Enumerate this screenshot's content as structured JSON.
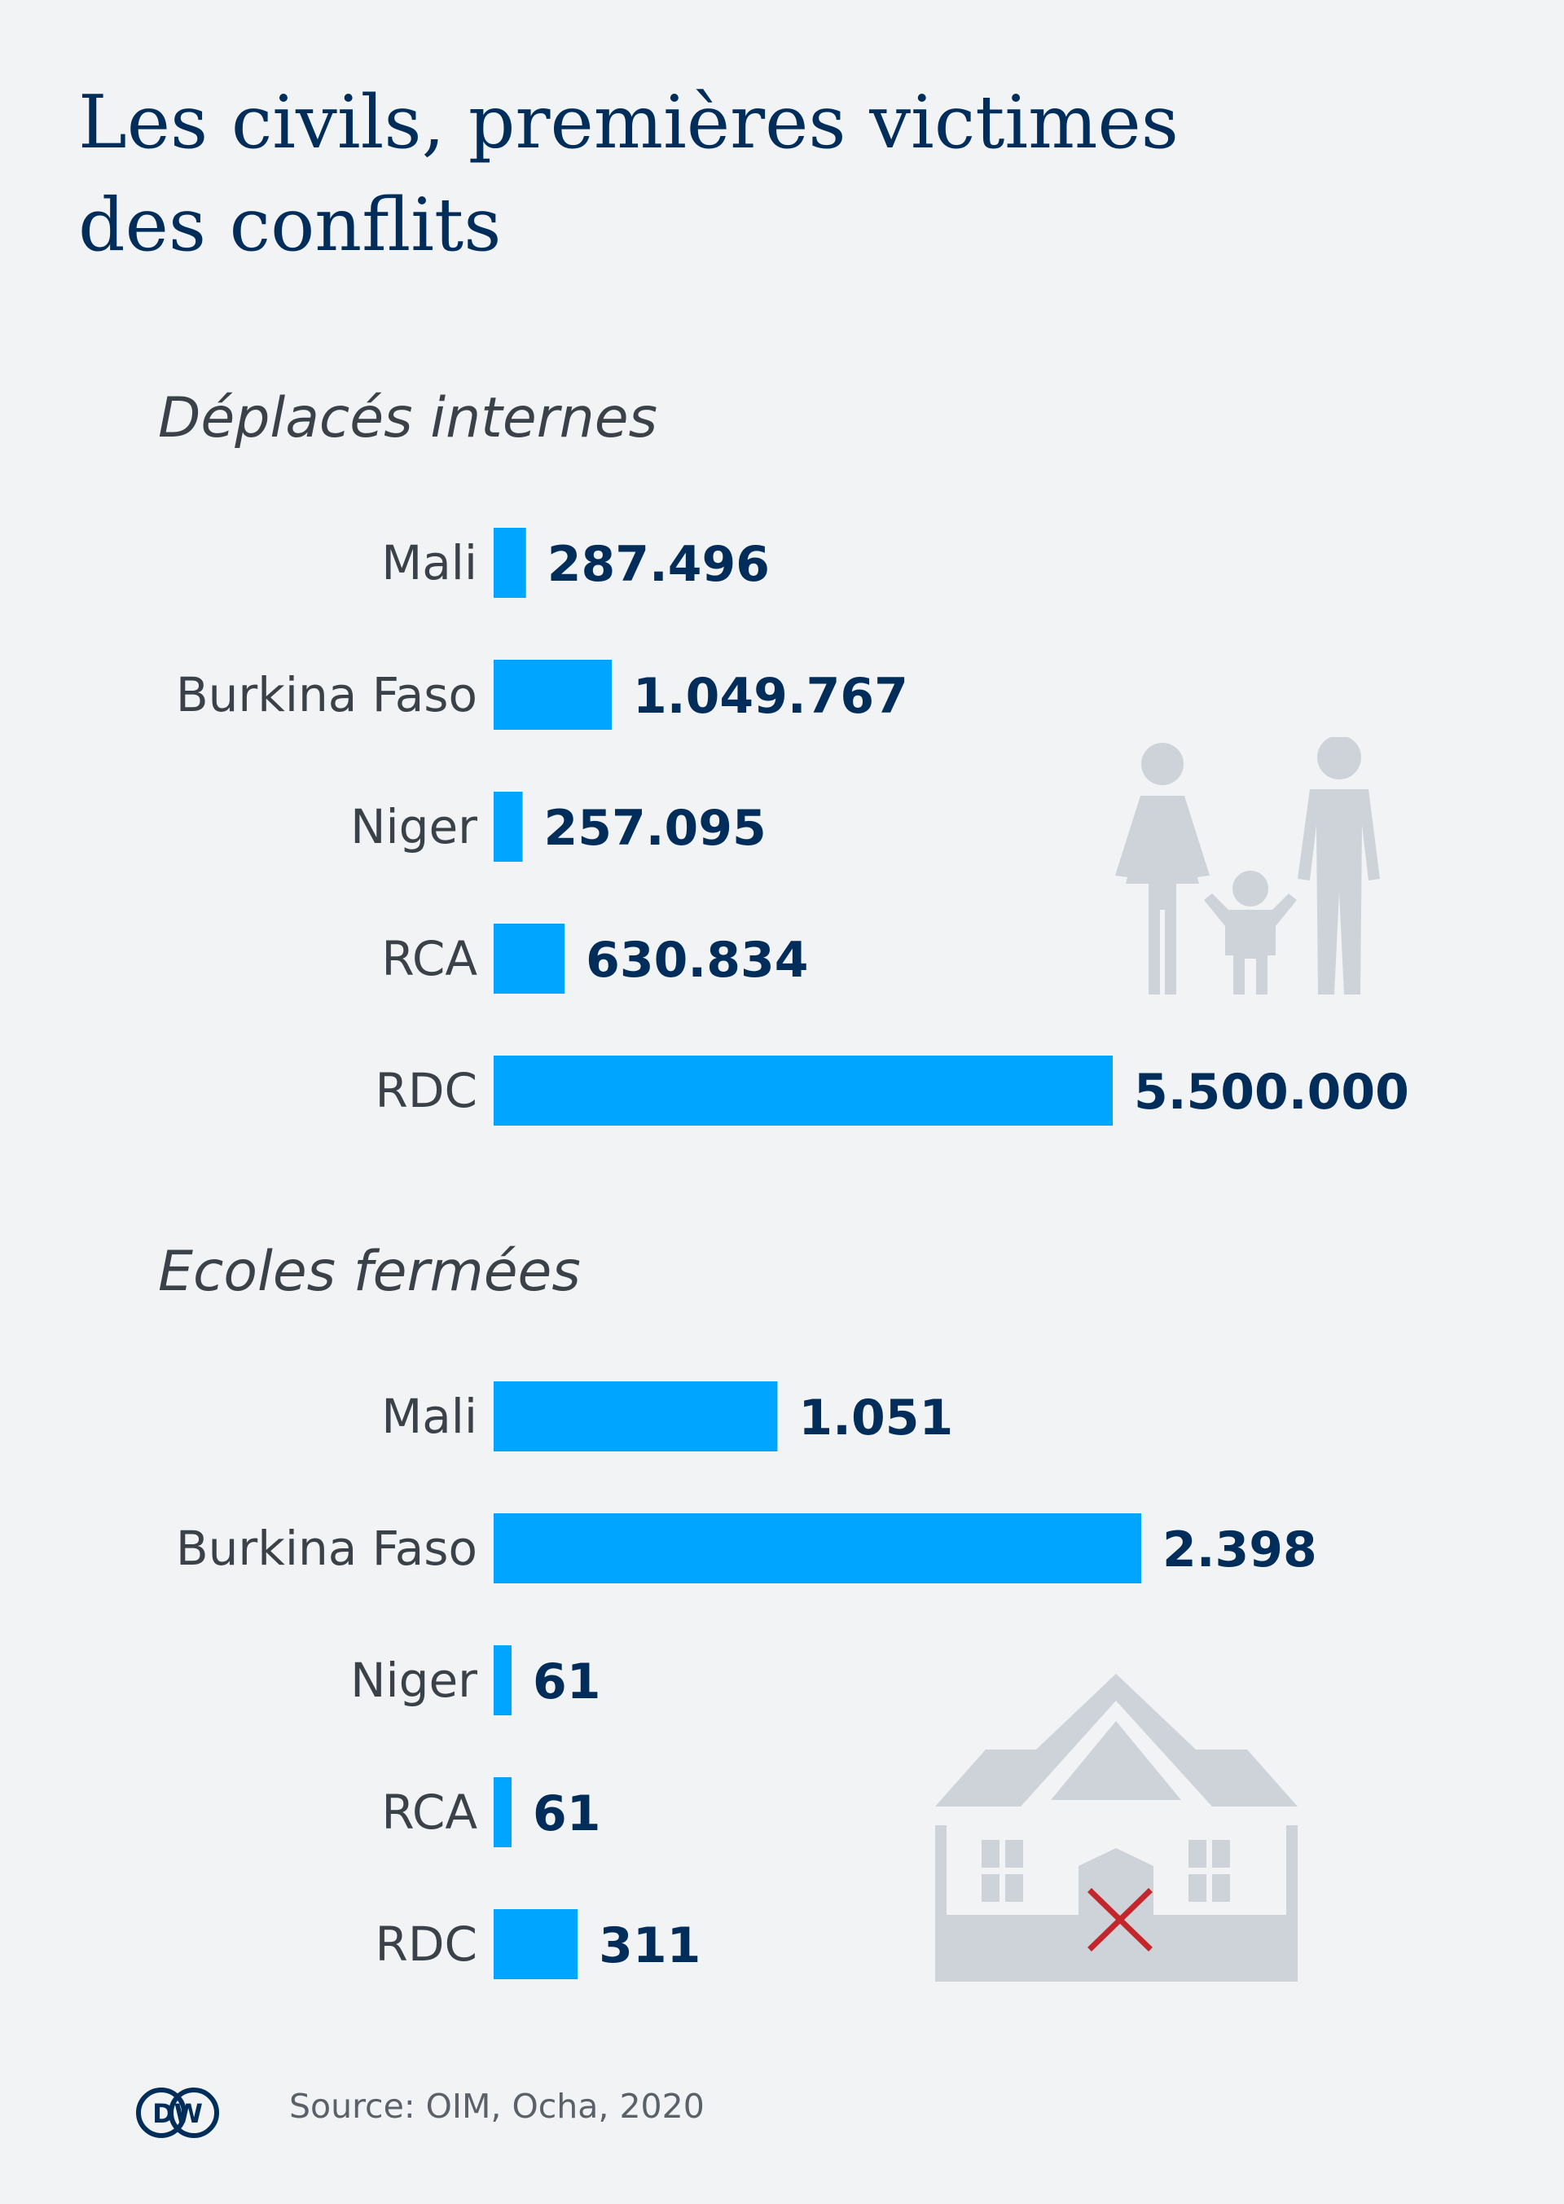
{
  "title": [
    "Les civils, premières victimes",
    "des conflits"
  ],
  "colors": {
    "bar": "#00a5ff",
    "text": "#002d5a",
    "icon": "#cdd3d9",
    "cross": "#c3272c"
  },
  "icons": {
    "displaced": "family-icon",
    "schools": "closed-school-icon",
    "logo": "dw-logo"
  },
  "source": "Source: OIM, Ocha, 2020",
  "logo_text": "DW",
  "chart_data": [
    {
      "type": "bar",
      "orientation": "horizontal",
      "title": "Déplacés internes",
      "categories": [
        "Mali",
        "Burkina Faso",
        "Niger",
        "RCA",
        "RDC"
      ],
      "values": [
        287496,
        1049767,
        257095,
        630834,
        5500000
      ],
      "value_labels": [
        "287.496",
        "1.049.767",
        "257.095",
        "630.834",
        "5.500.000"
      ],
      "xlim": [
        0,
        5500000
      ]
    },
    {
      "type": "bar",
      "orientation": "horizontal",
      "title": "Ecoles fermées",
      "categories": [
        "Mali",
        "Burkina Faso",
        "Niger",
        "RCA",
        "RDC"
      ],
      "values": [
        1051,
        2398,
        61,
        61,
        311
      ],
      "value_labels": [
        "1.051",
        "2.398",
        "61",
        "61",
        "311"
      ],
      "xlim": [
        0,
        2398
      ]
    }
  ]
}
